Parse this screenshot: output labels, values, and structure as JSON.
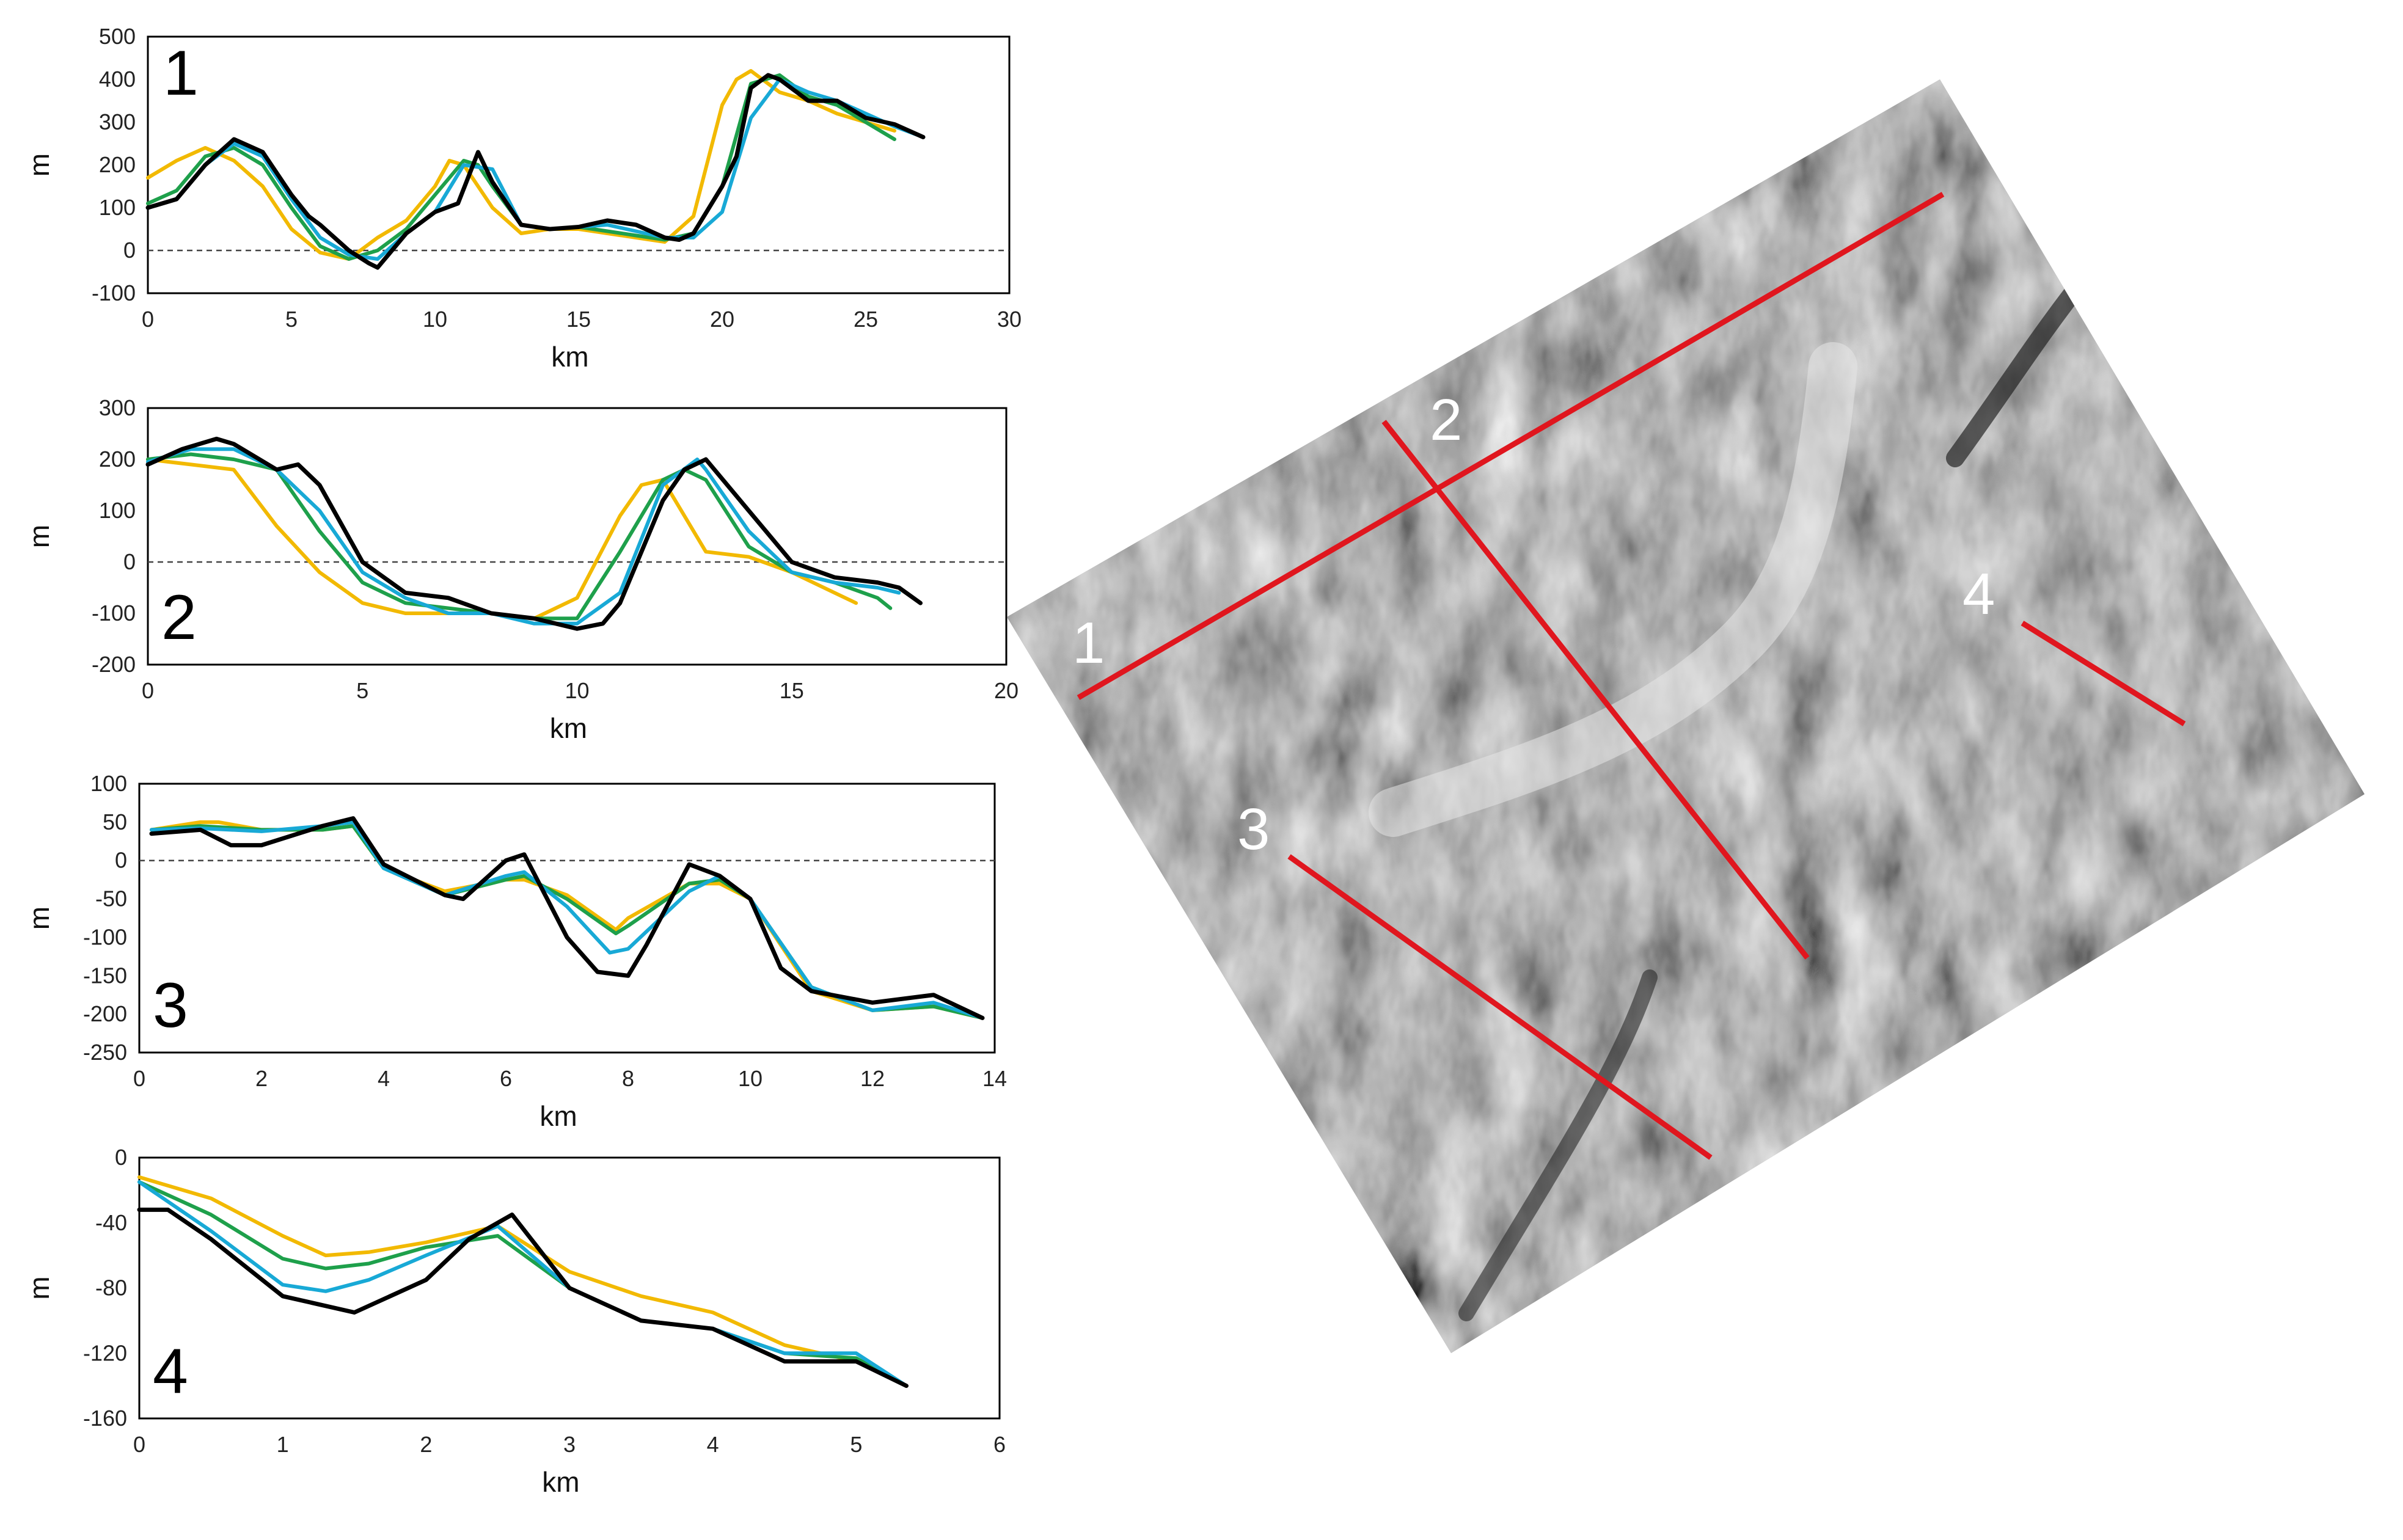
{
  "colors": {
    "yellow": "#f2b900",
    "green": "#1ea04b",
    "cyan": "#18a9d6",
    "black": "#000000",
    "profile_line": "#e0161e",
    "zero_line": "#444444"
  },
  "map": {
    "labels": [
      "1",
      "2",
      "3",
      "4"
    ]
  },
  "chart_data": [
    {
      "type": "line",
      "panel_label": "1",
      "xlabel": "km",
      "ylabel": "m",
      "xlim": [
        0,
        30
      ],
      "ylim": [
        -100,
        500
      ],
      "xticks": [
        0,
        5,
        10,
        15,
        20,
        25,
        30
      ],
      "yticks": [
        -100,
        0,
        100,
        200,
        300,
        400,
        500
      ],
      "zero_line": true,
      "series": [
        {
          "color": "yellow",
          "x": [
            0,
            1,
            2,
            3,
            4,
            5,
            6,
            7,
            8,
            9,
            10,
            10.5,
            11,
            12,
            13,
            14,
            15,
            16,
            17,
            18,
            19,
            20,
            20.5,
            21,
            22,
            23,
            24,
            25,
            26
          ],
          "y": [
            170,
            210,
            240,
            210,
            150,
            50,
            -5,
            -20,
            30,
            70,
            150,
            210,
            200,
            100,
            40,
            50,
            50,
            40,
            30,
            20,
            80,
            340,
            400,
            420,
            370,
            350,
            320,
            300,
            280
          ]
        },
        {
          "color": "green",
          "x": [
            0,
            1,
            2,
            3,
            4,
            5,
            6,
            7,
            8,
            9,
            10,
            11,
            11.5,
            12,
            13,
            14,
            15,
            16,
            17,
            18,
            19,
            20,
            21,
            22,
            23,
            24,
            25,
            26
          ],
          "y": [
            110,
            140,
            220,
            240,
            200,
            100,
            10,
            -20,
            0,
            50,
            130,
            210,
            200,
            150,
            60,
            50,
            55,
            45,
            35,
            25,
            40,
            150,
            390,
            410,
            360,
            340,
            300,
            260
          ]
        },
        {
          "color": "cyan",
          "x": [
            0,
            1,
            2,
            3,
            4,
            5,
            6,
            7,
            8,
            9,
            10,
            11,
            12,
            13,
            14,
            15,
            16,
            17,
            18,
            19,
            20,
            21,
            22,
            23,
            24,
            25,
            26,
            27
          ],
          "y": [
            100,
            120,
            200,
            250,
            220,
            120,
            30,
            -10,
            -20,
            40,
            90,
            200,
            190,
            60,
            50,
            55,
            60,
            45,
            30,
            30,
            90,
            310,
            400,
            370,
            350,
            320,
            290,
            265
          ]
        },
        {
          "color": "black",
          "x": [
            0,
            1,
            2,
            3,
            4,
            5,
            5.6,
            6,
            7,
            7.7,
            8,
            9,
            10,
            10.8,
            11.5,
            12,
            13,
            14,
            15,
            16,
            17,
            18,
            18.5,
            19,
            20,
            20.5,
            21,
            21.6,
            22,
            23,
            24,
            25,
            26,
            27
          ],
          "y": [
            100,
            120,
            200,
            260,
            230,
            130,
            80,
            60,
            0,
            -30,
            -40,
            40,
            90,
            110,
            230,
            160,
            60,
            50,
            55,
            70,
            60,
            30,
            25,
            40,
            150,
            220,
            380,
            410,
            400,
            350,
            350,
            310,
            295,
            265
          ]
        }
      ]
    },
    {
      "type": "line",
      "panel_label": "2",
      "xlabel": "km",
      "ylabel": "m",
      "xlim": [
        0,
        20
      ],
      "ylim": [
        -200,
        300
      ],
      "xticks": [
        0,
        5,
        10,
        15,
        20
      ],
      "yticks": [
        -200,
        -100,
        0,
        100,
        200,
        300
      ],
      "zero_line": true,
      "series": [
        {
          "color": "yellow",
          "x": [
            0,
            1,
            2,
            3,
            4,
            5,
            6,
            7,
            8,
            9,
            10,
            11,
            11.5,
            12,
            13,
            14,
            15,
            16,
            16.5
          ],
          "y": [
            200,
            190,
            180,
            70,
            -20,
            -80,
            -100,
            -100,
            -100,
            -110,
            -70,
            90,
            150,
            160,
            20,
            10,
            -20,
            -60,
            -80
          ]
        },
        {
          "color": "green",
          "x": [
            0,
            1,
            2,
            3,
            4,
            5,
            6,
            7,
            8,
            9,
            10,
            11,
            12,
            12.5,
            13,
            14,
            15,
            16,
            17,
            17.3
          ],
          "y": [
            200,
            210,
            200,
            180,
            60,
            -40,
            -80,
            -90,
            -100,
            -110,
            -110,
            20,
            160,
            180,
            160,
            30,
            -20,
            -40,
            -70,
            -90
          ]
        },
        {
          "color": "cyan",
          "x": [
            0,
            1,
            2,
            3,
            4,
            5,
            6,
            7,
            8,
            9,
            10,
            11,
            12,
            12.8,
            13,
            14,
            15,
            16,
            17,
            17.5
          ],
          "y": [
            195,
            220,
            220,
            180,
            100,
            -20,
            -70,
            -100,
            -100,
            -120,
            -120,
            -60,
            150,
            200,
            180,
            60,
            -20,
            -40,
            -50,
            -60
          ]
        },
        {
          "color": "black",
          "x": [
            0,
            0.8,
            1.6,
            2,
            3,
            3.5,
            4,
            5,
            6,
            7,
            8,
            9,
            10,
            10.6,
            11,
            12,
            12.5,
            13,
            14,
            15,
            16,
            17,
            17.5,
            18
          ],
          "y": [
            190,
            220,
            240,
            230,
            180,
            190,
            150,
            0,
            -60,
            -70,
            -100,
            -110,
            -130,
            -120,
            -80,
            120,
            180,
            200,
            100,
            0,
            -30,
            -40,
            -50,
            -80
          ]
        }
      ]
    },
    {
      "type": "line",
      "panel_label": "3",
      "xlabel": "km",
      "ylabel": "m",
      "xlim": [
        0,
        14
      ],
      "ylim": [
        -250,
        100
      ],
      "xticks": [
        0,
        2,
        4,
        6,
        8,
        10,
        12,
        14
      ],
      "yticks": [
        -250,
        -200,
        -150,
        -100,
        -50,
        0,
        50,
        100
      ],
      "zero_line": true,
      "series": [
        {
          "color": "yellow",
          "x": [
            0.2,
            1,
            1.3,
            2,
            3,
            3.5,
            4,
            5,
            6,
            6.3,
            7,
            7.8,
            8,
            9,
            9.5,
            10,
            11,
            12,
            13,
            13.8
          ],
          "y": [
            40,
            50,
            50,
            40,
            40,
            45,
            -10,
            -40,
            -25,
            -25,
            -45,
            -90,
            -75,
            -30,
            -30,
            -50,
            -170,
            -195,
            -190,
            -205
          ]
        },
        {
          "color": "green",
          "x": [
            0.2,
            1,
            2,
            3,
            3.5,
            4,
            5,
            6,
            6.3,
            7,
            7.8,
            8,
            9,
            9.5,
            10,
            11,
            12,
            13,
            13.8
          ],
          "y": [
            40,
            45,
            40,
            40,
            45,
            -10,
            -45,
            -25,
            -20,
            -50,
            -95,
            -85,
            -30,
            -25,
            -50,
            -165,
            -195,
            -190,
            -205
          ]
        },
        {
          "color": "cyan",
          "x": [
            0.2,
            1,
            2,
            3,
            3.5,
            4,
            5,
            6,
            6.3,
            7,
            7.7,
            8,
            9,
            9.5,
            10,
            11,
            12,
            13,
            13.8
          ],
          "y": [
            40,
            42,
            38,
            45,
            50,
            -10,
            -45,
            -20,
            -15,
            -60,
            -120,
            -115,
            -40,
            -20,
            -50,
            -165,
            -195,
            -185,
            -205
          ]
        },
        {
          "color": "black",
          "x": [
            0.2,
            1,
            1.5,
            2,
            3,
            3.5,
            4,
            5,
            5.3,
            6,
            6.3,
            7,
            7.5,
            8,
            8.3,
            9,
            9.5,
            10,
            10.5,
            11,
            12,
            13,
            13.8
          ],
          "y": [
            35,
            40,
            20,
            20,
            45,
            55,
            -5,
            -45,
            -50,
            0,
            8,
            -100,
            -145,
            -150,
            -110,
            -5,
            -20,
            -50,
            -140,
            -170,
            -185,
            -175,
            -205
          ]
        }
      ]
    },
    {
      "type": "line",
      "panel_label": "4",
      "xlabel": "km",
      "ylabel": "m",
      "xlim": [
        0,
        6
      ],
      "ylim": [
        -160,
        0
      ],
      "xticks": [
        0,
        1,
        2,
        3,
        4,
        5,
        6
      ],
      "yticks": [
        -160,
        -120,
        -80,
        -40,
        0
      ],
      "zero_line": false,
      "series": [
        {
          "color": "yellow",
          "x": [
            0,
            0.5,
            1,
            1.3,
            1.6,
            2,
            2.5,
            3,
            3.5,
            4,
            4.5,
            5,
            5.35
          ],
          "y": [
            -12,
            -25,
            -48,
            -60,
            -58,
            -52,
            -42,
            -70,
            -85,
            -95,
            -115,
            -125,
            -140
          ]
        },
        {
          "color": "green",
          "x": [
            0,
            0.5,
            1,
            1.3,
            1.6,
            2,
            2.5,
            3,
            3.5,
            4,
            4.5,
            5,
            5.35
          ],
          "y": [
            -15,
            -35,
            -62,
            -68,
            -65,
            -55,
            -48,
            -80,
            -100,
            -105,
            -120,
            -123,
            -140
          ]
        },
        {
          "color": "cyan",
          "x": [
            0,
            0.5,
            1,
            1.3,
            1.6,
            2,
            2.5,
            3,
            3.5,
            4,
            4.5,
            5,
            5.35
          ],
          "y": [
            -15,
            -45,
            -78,
            -82,
            -75,
            -60,
            -42,
            -80,
            -100,
            -105,
            -120,
            -120,
            -140
          ]
        },
        {
          "color": "black",
          "x": [
            0,
            0.2,
            0.5,
            1,
            1.5,
            2,
            2.3,
            2.6,
            3,
            3.5,
            4,
            4.5,
            5,
            5.35
          ],
          "y": [
            -32,
            -32,
            -50,
            -85,
            -95,
            -75,
            -50,
            -35,
            -80,
            -100,
            -105,
            -125,
            -125,
            -140
          ]
        }
      ]
    }
  ]
}
